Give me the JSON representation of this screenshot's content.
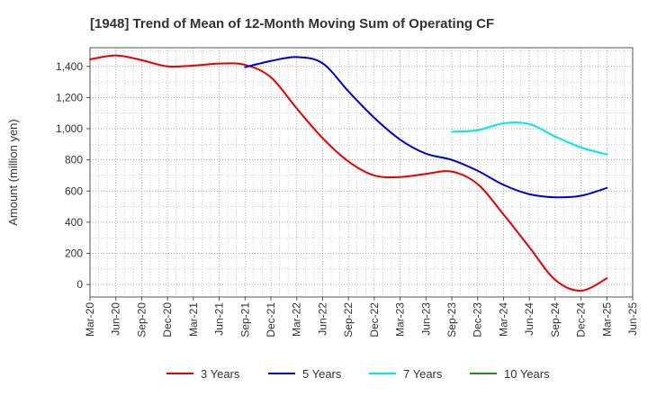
{
  "chart_data": {
    "type": "line",
    "title": "[1948]  Trend of Mean of 12-Month Moving Sum of Operating CF",
    "xlabel": "",
    "ylabel": "Amount (million yen)",
    "ylim": [
      -80,
      1520
    ],
    "yticks": [
      0,
      200,
      400,
      600,
      800,
      1000,
      1200,
      1400
    ],
    "ytick_labels": [
      "0",
      "200",
      "400",
      "600",
      "800",
      "1,000",
      "1,200",
      "1,400"
    ],
    "categories": [
      "Mar-20",
      "Jun-20",
      "Sep-20",
      "Dec-20",
      "Mar-21",
      "Jun-21",
      "Sep-21",
      "Dec-21",
      "Mar-22",
      "Jun-22",
      "Sep-22",
      "Dec-22",
      "Mar-23",
      "Jun-23",
      "Sep-23",
      "Dec-23",
      "Mar-24",
      "Jun-24",
      "Sep-24",
      "Dec-24",
      "Mar-25",
      "Jun-25"
    ],
    "grid": true,
    "legend_position": "bottom",
    "series": [
      {
        "name": "3 Years",
        "color": "#e60000",
        "values": [
          1445,
          1470,
          1440,
          1400,
          1405,
          1418,
          1410,
          1330,
          1130,
          940,
          790,
          700,
          690,
          710,
          725,
          645,
          450,
          240,
          30,
          -40,
          40,
          null
        ]
      },
      {
        "name": "5 Years",
        "color": "#0000cc",
        "values": [
          null,
          null,
          null,
          null,
          null,
          null,
          1395,
          1435,
          1460,
          1420,
          1240,
          1070,
          930,
          840,
          800,
          730,
          640,
          580,
          560,
          570,
          620,
          null
        ]
      },
      {
        "name": "7 Years",
        "color": "#00e5e5",
        "values": [
          null,
          null,
          null,
          null,
          null,
          null,
          null,
          null,
          null,
          null,
          null,
          null,
          null,
          null,
          980,
          990,
          1035,
          1030,
          950,
          880,
          835,
          null
        ]
      },
      {
        "name": "10 Years",
        "color": "#228b22",
        "values": [
          null,
          null,
          null,
          null,
          null,
          null,
          null,
          null,
          null,
          null,
          null,
          null,
          null,
          null,
          null,
          null,
          null,
          null,
          null,
          null,
          null,
          null
        ]
      }
    ]
  }
}
